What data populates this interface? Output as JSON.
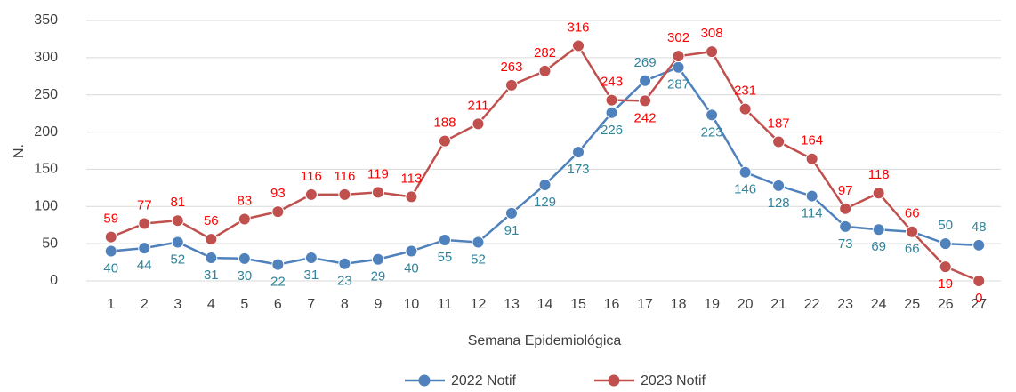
{
  "chart_data": {
    "type": "line",
    "x_label": "Semana Epidemiológica",
    "y_label": "N.",
    "categories": [
      "1",
      "2",
      "3",
      "4",
      "5",
      "6",
      "7",
      "8",
      "9",
      "10",
      "11",
      "12",
      "13",
      "14",
      "15",
      "16",
      "17",
      "18",
      "19",
      "20",
      "21",
      "22",
      "23",
      "24",
      "25",
      "26",
      "27"
    ],
    "series": [
      {
        "name": "2022 Notif",
        "color": "#4f81bd",
        "label_color": "#31849b",
        "values": [
          40,
          44,
          52,
          31,
          30,
          22,
          31,
          23,
          29,
          40,
          55,
          52,
          91,
          129,
          173,
          226,
          269,
          287,
          223,
          146,
          128,
          114,
          73,
          69,
          66,
          50,
          48
        ]
      },
      {
        "name": "2023 Notif",
        "color": "#c0504d",
        "label_color": "#ff0000",
        "values": [
          59,
          77,
          81,
          56,
          83,
          93,
          116,
          116,
          119,
          113,
          188,
          211,
          263,
          282,
          316,
          243,
          242,
          302,
          308,
          231,
          187,
          164,
          97,
          118,
          66,
          19,
          0
        ]
      }
    ],
    "ylim": [
      0,
      350
    ],
    "yticks": [
      0,
      50,
      100,
      150,
      200,
      250,
      300,
      350
    ],
    "grid": true,
    "legend": "bottom"
  }
}
